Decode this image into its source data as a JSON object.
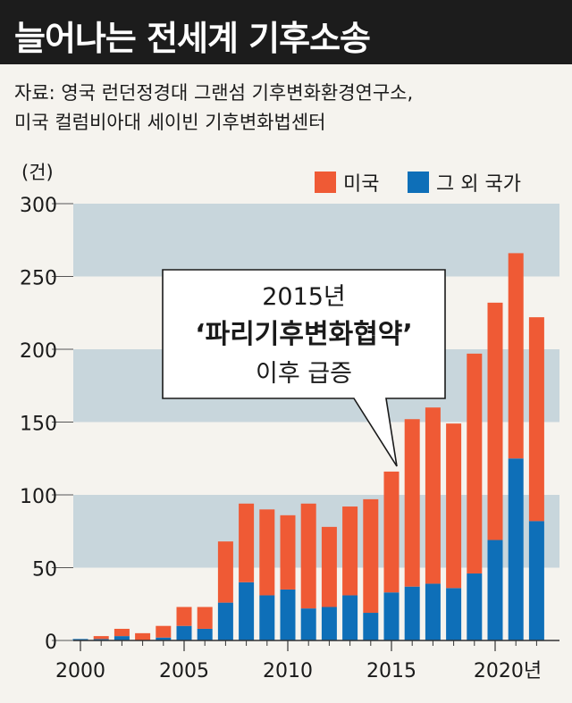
{
  "title": "늘어나는 전세계 기후소송",
  "source": {
    "line1": "자료: 영국 런던정경대 그랜섬 기후변화환경연구소,",
    "line2": "미국 컬럼비아대 세이빈 기후변화법센터"
  },
  "colors": {
    "us": "#ef5a35",
    "other": "#0e6fb8",
    "band": "#c8d6dc",
    "axis": "#555555"
  },
  "chart_data": {
    "type": "bar",
    "stacked": true,
    "unit_label": "(건)",
    "years": [
      2000,
      2001,
      2002,
      2003,
      2004,
      2005,
      2006,
      2007,
      2008,
      2009,
      2010,
      2011,
      2012,
      2013,
      2014,
      2015,
      2016,
      2017,
      2018,
      2019,
      2020,
      2021,
      2022
    ],
    "series": [
      {
        "name": "미국",
        "color_key": "us",
        "values": [
          0,
          2,
          5,
          5,
          8,
          13,
          15,
          42,
          54,
          59,
          51,
          72,
          55,
          61,
          78,
          83,
          115,
          121,
          113,
          151,
          163,
          141,
          140
        ]
      },
      {
        "name": "그 외 국가",
        "color_key": "other",
        "values": [
          1,
          1,
          3,
          0,
          2,
          10,
          8,
          26,
          40,
          31,
          35,
          22,
          23,
          31,
          19,
          33,
          37,
          39,
          36,
          46,
          69,
          125,
          82
        ]
      }
    ],
    "y_ticks": [
      "0",
      "50",
      "100",
      "150",
      "200",
      "250",
      "300"
    ],
    "ylim": [
      0,
      300
    ],
    "x_tick_labels": [
      {
        "year": 2000,
        "label": "2000"
      },
      {
        "year": 2005,
        "label": "2005"
      },
      {
        "year": 2010,
        "label": "2010"
      },
      {
        "year": 2015,
        "label": "2015"
      },
      {
        "year": 2020,
        "label": "2020년"
      }
    ],
    "annotation": {
      "line1": "2015년",
      "line2": "‘파리기후변화협약’",
      "line3": "이후 급증",
      "points_to_year": 2015
    },
    "legend_position": "top-right",
    "grid": "alternating horizontal bands"
  }
}
